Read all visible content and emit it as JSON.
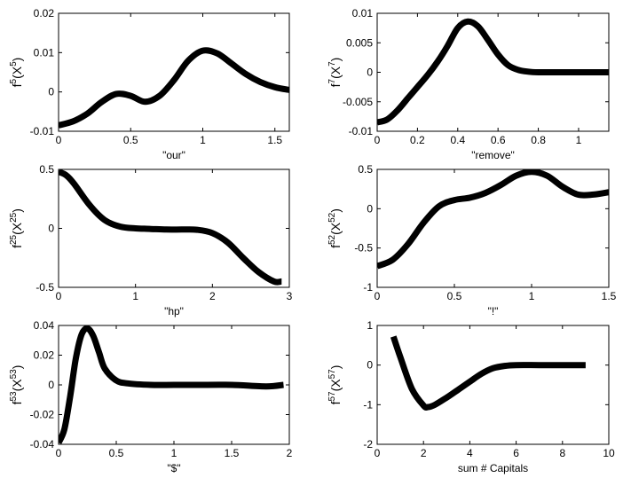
{
  "chart_data": [
    {
      "type": "line",
      "ylabel": {
        "base": "f",
        "sup1": "5",
        "mid": "(X",
        "sup2": "5",
        "end": ")"
      },
      "xlabel": "\"our\"",
      "xlim": [
        0,
        1.6
      ],
      "ylim": [
        -0.01,
        0.02
      ],
      "xticks": [
        0,
        0.5,
        1,
        1.5
      ],
      "xtick_labels": [
        "0",
        "0.5",
        "1",
        "1.5"
      ],
      "yticks": [
        -0.01,
        0,
        0.01,
        0.02
      ],
      "ytick_labels": [
        "-0.01",
        "0",
        "0.01",
        "0.02"
      ],
      "series": [
        {
          "name": "f5",
          "x": [
            0,
            0.1,
            0.2,
            0.3,
            0.4,
            0.5,
            0.6,
            0.7,
            0.8,
            0.9,
            1.0,
            1.1,
            1.2,
            1.3,
            1.4,
            1.5,
            1.6
          ],
          "y": [
            -0.0085,
            -0.0075,
            -0.0055,
            -0.0025,
            -0.0005,
            -0.001,
            -0.0025,
            -0.001,
            0.003,
            0.008,
            0.0105,
            0.0098,
            0.0072,
            0.0045,
            0.0025,
            0.0012,
            0.0005
          ]
        }
      ]
    },
    {
      "type": "line",
      "ylabel": {
        "base": "f",
        "sup1": "7",
        "mid": "(X",
        "sup2": "7",
        "end": ")"
      },
      "xlabel": "\"remove\"",
      "xlim": [
        0,
        1.15
      ],
      "ylim": [
        -0.01,
        0.01
      ],
      "xticks": [
        0,
        0.2,
        0.4,
        0.6,
        0.8,
        1
      ],
      "xtick_labels": [
        "0",
        "0.2",
        "0.4",
        "0.6",
        "0.8",
        "1"
      ],
      "yticks": [
        -0.01,
        -0.005,
        0,
        0.005,
        0.01
      ],
      "ytick_labels": [
        "-0.01",
        "-0.005",
        "0",
        "0.005",
        "0.01"
      ],
      "series": [
        {
          "name": "f7",
          "x": [
            0,
            0.05,
            0.1,
            0.15,
            0.2,
            0.25,
            0.3,
            0.35,
            0.4,
            0.45,
            0.5,
            0.55,
            0.6,
            0.65,
            0.7,
            0.75,
            0.8,
            0.9,
            1.0,
            1.15
          ],
          "y": [
            -0.0085,
            -0.008,
            -0.0065,
            -0.0045,
            -0.0025,
            -0.0005,
            0.0018,
            0.0045,
            0.0075,
            0.0086,
            0.0078,
            0.0055,
            0.003,
            0.0012,
            0.0004,
            0.0001,
            0.0,
            0.0,
            0.0,
            0.0
          ]
        }
      ]
    },
    {
      "type": "line",
      "ylabel": {
        "base": "f",
        "sup1": "25",
        "mid": "(X",
        "sup2": "25",
        "end": ")"
      },
      "xlabel": "\"hp\"",
      "xlim": [
        0,
        3
      ],
      "ylim": [
        -0.5,
        0.5
      ],
      "xticks": [
        0,
        1,
        2,
        3
      ],
      "xtick_labels": [
        "0",
        "1",
        "2",
        "3"
      ],
      "yticks": [
        -0.5,
        0,
        0.5
      ],
      "ytick_labels": [
        "-0.5",
        "0",
        "0.5"
      ],
      "series": [
        {
          "name": "f25",
          "x": [
            0,
            0.1,
            0.2,
            0.4,
            0.6,
            0.8,
            1.0,
            1.2,
            1.4,
            1.6,
            1.8,
            2.0,
            2.2,
            2.4,
            2.6,
            2.8,
            2.9
          ],
          "y": [
            0.48,
            0.45,
            0.38,
            0.2,
            0.07,
            0.015,
            0.0,
            -0.005,
            -0.01,
            -0.01,
            -0.012,
            -0.04,
            -0.12,
            -0.25,
            -0.37,
            -0.45,
            -0.45
          ]
        }
      ]
    },
    {
      "type": "line",
      "ylabel": {
        "base": "f",
        "sup1": "52",
        "mid": "(X",
        "sup2": "52",
        "end": ")"
      },
      "xlabel": "\"!\"",
      "xlim": [
        0,
        1.5
      ],
      "ylim": [
        -1,
        0.5
      ],
      "xticks": [
        0,
        0.5,
        1,
        1.5
      ],
      "xtick_labels": [
        "0",
        "0.5",
        "1",
        "1.5"
      ],
      "yticks": [
        -1,
        -0.5,
        0,
        0.5
      ],
      "ytick_labels": [
        "-1",
        "-0.5",
        "0",
        "0.5"
      ],
      "series": [
        {
          "name": "f52",
          "x": [
            0,
            0.1,
            0.2,
            0.3,
            0.4,
            0.5,
            0.6,
            0.7,
            0.8,
            0.9,
            1.0,
            1.1,
            1.2,
            1.3,
            1.4,
            1.5
          ],
          "y": [
            -0.73,
            -0.65,
            -0.45,
            -0.18,
            0.03,
            0.11,
            0.14,
            0.2,
            0.3,
            0.42,
            0.47,
            0.42,
            0.28,
            0.18,
            0.18,
            0.21
          ]
        }
      ]
    },
    {
      "type": "line",
      "ylabel": {
        "base": "f",
        "sup1": "53",
        "mid": "(X",
        "sup2": "53",
        "end": ")"
      },
      "xlabel": "\"$\"",
      "xlim": [
        0,
        2
      ],
      "ylim": [
        -0.04,
        0.04
      ],
      "xticks": [
        0,
        0.5,
        1,
        1.5,
        2
      ],
      "xtick_labels": [
        "0",
        "0.5",
        "1",
        "1.5",
        "2"
      ],
      "yticks": [
        -0.04,
        -0.02,
        0,
        0.02,
        0.04
      ],
      "ytick_labels": [
        "-0.04",
        "-0.02",
        "0",
        "0.02",
        "0.04"
      ],
      "series": [
        {
          "name": "f53",
          "x": [
            0,
            0.05,
            0.1,
            0.15,
            0.2,
            0.25,
            0.3,
            0.35,
            0.4,
            0.5,
            0.6,
            0.8,
            1.0,
            1.2,
            1.5,
            1.8,
            1.95
          ],
          "y": [
            -0.039,
            -0.03,
            -0.008,
            0.018,
            0.034,
            0.038,
            0.033,
            0.022,
            0.011,
            0.003,
            0.001,
            0.0,
            0.0,
            0.0,
            0.0,
            -0.001,
            0.0
          ]
        }
      ]
    },
    {
      "type": "line",
      "ylabel": {
        "base": "f",
        "sup1": "57",
        "mid": "(X",
        "sup2": "57",
        "end": ")"
      },
      "xlabel": "sum # Capitals",
      "xlim": [
        0,
        10
      ],
      "ylim": [
        -2,
        1
      ],
      "xticks": [
        0,
        2,
        4,
        6,
        8,
        10
      ],
      "xtick_labels": [
        "0",
        "2",
        "4",
        "6",
        "8",
        "10"
      ],
      "yticks": [
        -2,
        -1,
        0,
        1
      ],
      "ytick_labels": [
        "-2",
        "-1",
        "0",
        "1"
      ],
      "series": [
        {
          "name": "f57",
          "x": [
            0.7,
            1.0,
            1.5,
            2.0,
            2.2,
            2.5,
            3.0,
            3.5,
            4.0,
            4.5,
            5.0,
            5.5,
            6.0,
            7.0,
            8.0,
            9.0
          ],
          "y": [
            0.72,
            0.2,
            -0.6,
            -1.02,
            -1.06,
            -1.0,
            -0.82,
            -0.62,
            -0.42,
            -0.22,
            -0.08,
            -0.02,
            0.0,
            0.0,
            0.0,
            0.0
          ]
        }
      ]
    }
  ]
}
